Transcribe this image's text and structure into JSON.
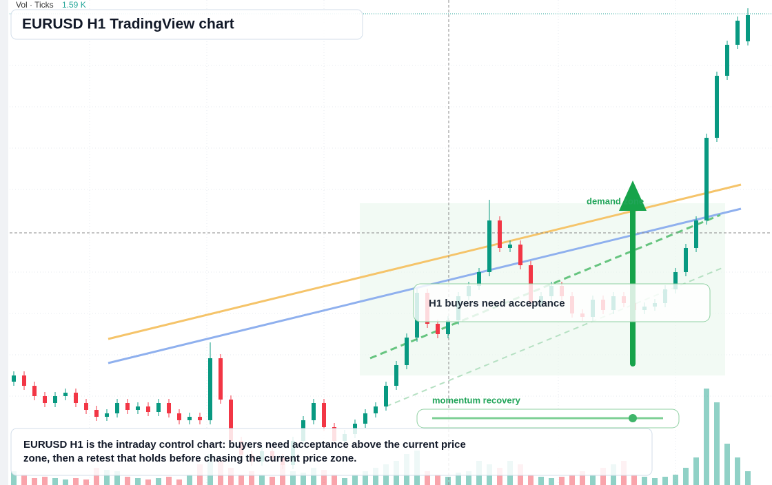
{
  "legend": {
    "label": "Vol · Ticks",
    "value": "1.59 K"
  },
  "chart_data": {
    "type": "candlestick",
    "title": "EURUSD H1 TradingView chart",
    "ylim": [
      0,
      704
    ],
    "volume_ylim": [
      0,
      704
    ],
    "up_color": "#089981",
    "down_color": "#f23645",
    "open": [
      150,
      159,
      144,
      129,
      119,
      129,
      134,
      119,
      109,
      99,
      104,
      119,
      109,
      114,
      106,
      119,
      104,
      94,
      99,
      94,
      184,
      124,
      64,
      44,
      34,
      49,
      39,
      29,
      64,
      94,
      119,
      84,
      64,
      74,
      89,
      104,
      114,
      144,
      174,
      214,
      279,
      234,
      219,
      239,
      274,
      289,
      309,
      384,
      344,
      349,
      319,
      264,
      274,
      289,
      274,
      249,
      244,
      269,
      254,
      274,
      264,
      254,
      259,
      264,
      284,
      309,
      344,
      384,
      504,
      594,
      639,
      644
    ],
    "high": [
      165,
      165,
      150,
      135,
      135,
      140,
      140,
      125,
      115,
      110,
      125,
      125,
      120,
      120,
      125,
      125,
      110,
      105,
      105,
      207,
      190,
      130,
      70,
      50,
      55,
      55,
      45,
      70,
      100,
      125,
      125,
      90,
      80,
      95,
      110,
      120,
      150,
      180,
      220,
      285,
      285,
      240,
      245,
      280,
      295,
      315,
      414,
      390,
      355,
      355,
      325,
      280,
      295,
      295,
      280,
      255,
      275,
      275,
      280,
      280,
      270,
      265,
      270,
      290,
      315,
      350,
      390,
      510,
      600,
      645,
      680,
      692
    ],
    "low": [
      144,
      138,
      123,
      113,
      113,
      123,
      113,
      103,
      93,
      93,
      98,
      103,
      103,
      100,
      100,
      98,
      88,
      88,
      88,
      88,
      118,
      58,
      38,
      28,
      28,
      33,
      23,
      23,
      58,
      88,
      78,
      58,
      58,
      68,
      83,
      98,
      108,
      138,
      168,
      208,
      228,
      213,
      213,
      233,
      268,
      283,
      303,
      338,
      338,
      313,
      258,
      258,
      268,
      268,
      243,
      238,
      238,
      248,
      248,
      258,
      248,
      248,
      253,
      258,
      278,
      303,
      338,
      378,
      498,
      588,
      633,
      638
    ],
    "close": [
      159,
      144,
      129,
      119,
      129,
      134,
      119,
      109,
      99,
      104,
      119,
      109,
      114,
      106,
      119,
      104,
      94,
      99,
      94,
      184,
      124,
      64,
      44,
      34,
      49,
      39,
      29,
      64,
      94,
      119,
      84,
      64,
      74,
      89,
      104,
      114,
      144,
      174,
      214,
      279,
      234,
      219,
      239,
      274,
      289,
      309,
      384,
      344,
      349,
      319,
      264,
      274,
      289,
      274,
      249,
      244,
      269,
      254,
      274,
      264,
      254,
      259,
      264,
      284,
      309,
      344,
      384,
      504,
      594,
      639,
      674,
      682
    ],
    "volume": [
      20,
      15,
      10,
      12,
      10,
      8,
      10,
      8,
      25,
      22,
      20,
      12,
      10,
      8,
      10,
      12,
      8,
      15,
      30,
      45,
      35,
      25,
      15,
      20,
      15,
      12,
      30,
      20,
      18,
      25,
      22,
      15,
      10,
      15,
      20,
      25,
      30,
      35,
      45,
      50,
      20,
      15,
      12,
      18,
      20,
      35,
      30,
      25,
      35,
      30,
      15,
      12,
      10,
      12,
      15,
      20,
      15,
      25,
      30,
      35,
      15,
      12,
      10,
      12,
      15,
      25,
      40,
      140,
      120,
      60,
      40,
      20
    ],
    "annotations": [
      "H1 buyers need acceptance",
      "demand zone",
      "momentum recovery"
    ],
    "caption": "EURUSD H1 is the intraday control chart: buyers need acceptance above the current price zone, then a retest that holds before chasing the current price zone."
  }
}
